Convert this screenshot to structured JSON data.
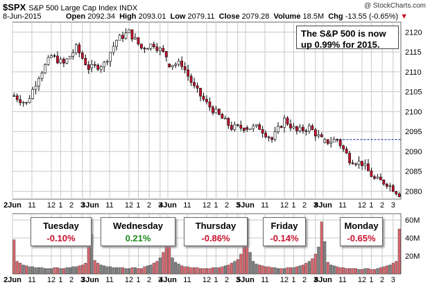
{
  "header": {
    "symbol": "$SPX",
    "name": "S&P 500 Large Cap Index",
    "exchange": "INDX",
    "date": "8-Jun-2015",
    "open_label": "Open",
    "open": "2092.34",
    "high_label": "High",
    "high": "2093.01",
    "low_label": "Low",
    "low": "2079.11",
    "close_label": "Close",
    "close": "2079.28",
    "volume_label": "Volume",
    "volume": "18.5M",
    "chg_label": "Chg",
    "chg": "-13.55 (-0.65%)",
    "credit": "@ StockCharts.com"
  },
  "note": {
    "line1": "The S&P 500 is now",
    "line2": "up 0.99% for 2015."
  },
  "days": [
    {
      "name": "Tuesday",
      "pct": "-0.10%",
      "color": "#c8102e"
    },
    {
      "name": "Wednesday",
      "pct": "0.21%",
      "color": "#1f8a1f"
    },
    {
      "name": "Thursday",
      "pct": "-0.86%",
      "color": "#c8102e"
    },
    {
      "name": "Friday",
      "pct": "-0.14%",
      "color": "#c8102e"
    },
    {
      "name": "Monday",
      "pct": "-0.65%",
      "color": "#c8102e"
    }
  ],
  "colors": {
    "up": "#ffffff",
    "down": "#c8102e",
    "vol_up": "#808080",
    "vol_down": "#d9666e",
    "grid": "#c8c8c8",
    "ref": "#0a1a8c"
  },
  "chart_data": {
    "type": "candlestick",
    "price_axis": {
      "ticks": [
        "2080",
        "2085",
        "2090",
        "2095",
        "2100",
        "2105",
        "2110",
        "2115",
        "2120"
      ],
      "ylim": [
        2078,
        2122.5
      ]
    },
    "volume_axis": {
      "ticks": [
        "20M",
        "40M",
        "60M"
      ],
      "ylim": [
        0,
        67
      ]
    },
    "x_ticks": [
      {
        "label": "2Jun",
        "day": 0,
        "frac": 0.0,
        "bold": true
      },
      {
        "label": "11",
        "day": 0,
        "frac": 0.25
      },
      {
        "label": "12",
        "day": 0,
        "frac": 0.5
      },
      {
        "label": "1",
        "day": 0,
        "frac": 0.62
      },
      {
        "label": "2",
        "day": 0,
        "frac": 0.76
      },
      {
        "label": "3",
        "day": 0,
        "frac": 0.9
      },
      {
        "label": "3Jun",
        "day": 1,
        "frac": 0.0,
        "bold": true
      },
      {
        "label": "11",
        "day": 1,
        "frac": 0.25
      },
      {
        "label": "12",
        "day": 1,
        "frac": 0.5
      },
      {
        "label": "1",
        "day": 1,
        "frac": 0.62
      },
      {
        "label": "2",
        "day": 1,
        "frac": 0.76
      },
      {
        "label": "3",
        "day": 1,
        "frac": 0.9
      },
      {
        "label": "4Jun",
        "day": 2,
        "frac": 0.0,
        "bold": true
      },
      {
        "label": "11",
        "day": 2,
        "frac": 0.25
      },
      {
        "label": "12",
        "day": 2,
        "frac": 0.5
      },
      {
        "label": "1",
        "day": 2,
        "frac": 0.62
      },
      {
        "label": "2",
        "day": 2,
        "frac": 0.76
      },
      {
        "label": "3",
        "day": 2,
        "frac": 0.9
      },
      {
        "label": "5Jun",
        "day": 3,
        "frac": 0.0,
        "bold": true
      },
      {
        "label": "11",
        "day": 3,
        "frac": 0.25
      },
      {
        "label": "12",
        "day": 3,
        "frac": 0.5
      },
      {
        "label": "1",
        "day": 3,
        "frac": 0.62
      },
      {
        "label": "2",
        "day": 3,
        "frac": 0.76
      },
      {
        "label": "3",
        "day": 3,
        "frac": 0.9
      },
      {
        "label": "8Jun",
        "day": 4,
        "frac": 0.0,
        "bold": true
      },
      {
        "label": "11",
        "day": 4,
        "frac": 0.25
      },
      {
        "label": "12",
        "day": 4,
        "frac": 0.5
      },
      {
        "label": "1",
        "day": 4,
        "frac": 0.62
      },
      {
        "label": "2",
        "day": 4,
        "frac": 0.76
      },
      {
        "label": "3",
        "day": 4,
        "frac": 0.9
      }
    ],
    "reference_line": 2093,
    "day_closes": [
      [
        2102,
        2109,
        2114,
        2112,
        2116,
        2111
      ],
      [
        2112,
        2118,
        2120,
        2116,
        2117,
        2114
      ],
      [
        2112,
        2106,
        2102,
        2099,
        2096,
        2096
      ],
      [
        2096,
        2093,
        2098,
        2095,
        2096,
        2093
      ],
      [
        2093,
        2088,
        2087,
        2083,
        2082,
        2079.3
      ]
    ],
    "day_open": [
      2104,
      2111,
      2112,
      2096,
      2092.3
    ],
    "volume_shape": [
      [
        38,
        14,
        12,
        10,
        9,
        8,
        8,
        7,
        7,
        7,
        6,
        6,
        6,
        7,
        7,
        6,
        6,
        7,
        7,
        8,
        8,
        9,
        10,
        12,
        30
      ],
      [
        44,
        15,
        12,
        10,
        9,
        8,
        8,
        7,
        7,
        7,
        7,
        6,
        6,
        7,
        7,
        6,
        6,
        8,
        9,
        10,
        12,
        14,
        18,
        24,
        38
      ],
      [
        52,
        18,
        13,
        11,
        9,
        8,
        8,
        7,
        7,
        7,
        6,
        6,
        6,
        6,
        7,
        7,
        7,
        8,
        9,
        10,
        12,
        14,
        16,
        22,
        44
      ],
      [
        62,
        24,
        14,
        11,
        10,
        9,
        8,
        8,
        7,
        7,
        6,
        6,
        6,
        7,
        7,
        7,
        8,
        9,
        10,
        12,
        14,
        17,
        22,
        30,
        58
      ],
      [
        36,
        13,
        10,
        9,
        8,
        7,
        7,
        6,
        6,
        6,
        6,
        5,
        5,
        6,
        6,
        5,
        5,
        6,
        7,
        8,
        9,
        10,
        12,
        14,
        50
      ]
    ]
  }
}
